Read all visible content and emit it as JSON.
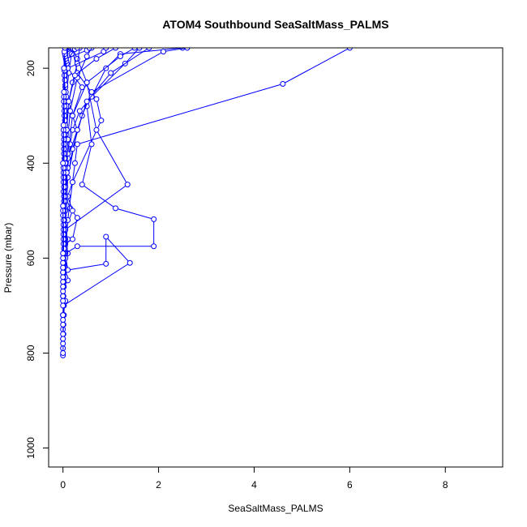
{
  "chart_data": {
    "type": "line",
    "title": "ATOM4 Southbound SeaSaltMass_PALMS",
    "xlabel": "SeaSaltMass_PALMS",
    "ylabel": "Pressure (mbar)",
    "xlim": [
      -0.3,
      9.2
    ],
    "ylim": [
      1040,
      157
    ],
    "y_reversed": true,
    "x_ticks": [
      0,
      2,
      4,
      6,
      8
    ],
    "y_ticks": [
      200,
      400,
      600,
      800,
      1000
    ],
    "grid": false,
    "legend": "none",
    "series_color": "#0000ff",
    "marker": "open-circle",
    "series": [
      {
        "values": [
          [
            0,
            805
          ],
          [
            0,
            790
          ],
          [
            0,
            770
          ],
          [
            0.01,
            740
          ],
          [
            0,
            720
          ],
          [
            0.02,
            700
          ],
          [
            0,
            680
          ],
          [
            0.01,
            650
          ],
          [
            0,
            630
          ],
          [
            0.02,
            600
          ],
          [
            0.05,
            570
          ],
          [
            0.2,
            560
          ],
          [
            0.3,
            515
          ],
          [
            0.15,
            495
          ],
          [
            0.05,
            470
          ],
          [
            0.1,
            430
          ],
          [
            0.3,
            330
          ],
          [
            0.2,
            300
          ],
          [
            0.4,
            240
          ],
          [
            0.1,
            200
          ],
          [
            0.1,
            160
          ]
        ]
      },
      {
        "values": [
          [
            0,
            800
          ],
          [
            0.01,
            760
          ],
          [
            0,
            720
          ],
          [
            0.05,
            690
          ],
          [
            0.02,
            660
          ],
          [
            0.1,
            647
          ],
          [
            0.05,
            620
          ],
          [
            0.1,
            590
          ],
          [
            0.05,
            540
          ],
          [
            0.2,
            500
          ],
          [
            0.1,
            470
          ],
          [
            0.2,
            440
          ],
          [
            0.8,
            310
          ],
          [
            0.7,
            265
          ],
          [
            0.3,
            210
          ],
          [
            0.2,
            160
          ]
        ]
      },
      {
        "values": [
          [
            0,
            780
          ],
          [
            0,
            750
          ],
          [
            0.01,
            700
          ],
          [
            1.4,
            610
          ],
          [
            0.9,
            555
          ],
          [
            0.9,
            612
          ],
          [
            0.1,
            625
          ],
          [
            0.05,
            590
          ],
          [
            0.3,
            575
          ],
          [
            1.9,
            575
          ],
          [
            1.9,
            518
          ],
          [
            1.1,
            495
          ],
          [
            0.4,
            445
          ],
          [
            0.6,
            360
          ],
          [
            0.5,
            280
          ],
          [
            0.9,
            200
          ],
          [
            1.2,
            170
          ],
          [
            2.5,
            157
          ]
        ]
      },
      {
        "values": [
          [
            0,
            770
          ],
          [
            0.02,
            720
          ],
          [
            0.05,
            640
          ],
          [
            0.1,
            560
          ],
          [
            0.05,
            540
          ],
          [
            1.35,
            445
          ],
          [
            0.7,
            330
          ],
          [
            0.5,
            230
          ],
          [
            0.3,
            180
          ],
          [
            0.2,
            157
          ]
        ]
      },
      {
        "values": [
          [
            0,
            760
          ],
          [
            0.01,
            700
          ],
          [
            0.05,
            600
          ],
          [
            0.1,
            520
          ],
          [
            0.2,
            440
          ],
          [
            0.25,
            400
          ],
          [
            0.3,
            360
          ],
          [
            4.6,
            233
          ],
          [
            6.0,
            157
          ]
        ]
      },
      {
        "values": [
          [
            0,
            740
          ],
          [
            0.01,
            680
          ],
          [
            0.05,
            560
          ],
          [
            0.1,
            430
          ],
          [
            0.2,
            370
          ],
          [
            0.4,
            300
          ],
          [
            0.6,
            250
          ],
          [
            2.1,
            165
          ],
          [
            2.6,
            157
          ]
        ]
      },
      {
        "values": [
          [
            0,
            730
          ],
          [
            0.02,
            650
          ],
          [
            0.03,
            560
          ],
          [
            0.05,
            480
          ],
          [
            0.1,
            410
          ],
          [
            0.15,
            360
          ],
          [
            0.2,
            330
          ],
          [
            0.35,
            290
          ],
          [
            0.6,
            260
          ],
          [
            1.3,
            190
          ],
          [
            1.6,
            157
          ]
        ]
      },
      {
        "values": [
          [
            0,
            720
          ],
          [
            0.01,
            640
          ],
          [
            0.02,
            560
          ],
          [
            0.05,
            470
          ],
          [
            0.1,
            390
          ],
          [
            0.3,
            330
          ],
          [
            0.5,
            270
          ],
          [
            1.0,
            210
          ],
          [
            1.8,
            157
          ]
        ]
      },
      {
        "values": [
          [
            0,
            700
          ],
          [
            0.01,
            600
          ],
          [
            0.03,
            520
          ],
          [
            0.05,
            450
          ],
          [
            0.1,
            380
          ],
          [
            0.2,
            300
          ],
          [
            0.5,
            230
          ],
          [
            1.2,
            175
          ],
          [
            1.5,
            157
          ]
        ]
      },
      {
        "values": [
          [
            0,
            690
          ],
          [
            0.02,
            580
          ],
          [
            0.05,
            500
          ],
          [
            0.08,
            420
          ],
          [
            0.1,
            350
          ],
          [
            0.15,
            290
          ],
          [
            0.3,
            220
          ],
          [
            0.5,
            175
          ],
          [
            0.6,
            157
          ]
        ]
      },
      {
        "values": [
          [
            0,
            680
          ],
          [
            0.01,
            590
          ],
          [
            0.02,
            500
          ],
          [
            0.04,
            410
          ],
          [
            0.06,
            340
          ],
          [
            0.1,
            280
          ],
          [
            0.2,
            230
          ],
          [
            0.3,
            190
          ],
          [
            0.35,
            157
          ]
        ]
      },
      {
        "values": [
          [
            0,
            670
          ],
          [
            0.01,
            570
          ],
          [
            0.02,
            480
          ],
          [
            0.05,
            400
          ],
          [
            0.08,
            330
          ],
          [
            0.12,
            270
          ],
          [
            0.25,
            215
          ],
          [
            0.7,
            180
          ],
          [
            1.1,
            157
          ]
        ]
      },
      {
        "values": [
          [
            0,
            660
          ],
          [
            0.01,
            560
          ],
          [
            0.02,
            470
          ],
          [
            0.03,
            390
          ],
          [
            0.05,
            320
          ],
          [
            0.07,
            260
          ],
          [
            0.12,
            210
          ],
          [
            0.18,
            170
          ],
          [
            0.2,
            157
          ]
        ]
      },
      {
        "values": [
          [
            0,
            650
          ],
          [
            0.01,
            550
          ],
          [
            0.01,
            460
          ],
          [
            0.02,
            380
          ],
          [
            0.04,
            310
          ],
          [
            0.06,
            250
          ],
          [
            0.1,
            200
          ],
          [
            0.85,
            165
          ],
          [
            0.9,
            157
          ]
        ]
      },
      {
        "values": [
          [
            0,
            640
          ],
          [
            0.01,
            540
          ],
          [
            0.02,
            450
          ],
          [
            0.02,
            370
          ],
          [
            0.03,
            300
          ],
          [
            0.05,
            240
          ],
          [
            0.08,
            190
          ],
          [
            0.1,
            157
          ]
        ]
      },
      {
        "values": [
          [
            0,
            630
          ],
          [
            0.01,
            530
          ],
          [
            0.01,
            440
          ],
          [
            0.02,
            360
          ],
          [
            0.03,
            290
          ],
          [
            0.05,
            235
          ],
          [
            0.07,
            185
          ],
          [
            0.25,
            160
          ],
          [
            0.3,
            157
          ]
        ]
      },
      {
        "values": [
          [
            0,
            620
          ],
          [
            0.01,
            520
          ],
          [
            0.01,
            430
          ],
          [
            0.02,
            350
          ],
          [
            0.03,
            280
          ],
          [
            0.04,
            225
          ],
          [
            0.06,
            180
          ],
          [
            0.5,
            162
          ],
          [
            0.55,
            157
          ]
        ]
      },
      {
        "values": [
          [
            0,
            610
          ],
          [
            0,
            510
          ],
          [
            0.01,
            420
          ],
          [
            0.02,
            340
          ],
          [
            0.02,
            270
          ],
          [
            0.03,
            215
          ],
          [
            0.05,
            175
          ],
          [
            0.07,
            157
          ]
        ]
      },
      {
        "values": [
          [
            0,
            600
          ],
          [
            0,
            500
          ],
          [
            0.01,
            410
          ],
          [
            0.01,
            330
          ],
          [
            0.02,
            260
          ],
          [
            0.03,
            205
          ],
          [
            0.04,
            170
          ],
          [
            0.05,
            157
          ]
        ]
      },
      {
        "values": [
          [
            0,
            590
          ],
          [
            0,
            490
          ],
          [
            0,
            400
          ],
          [
            0.01,
            320
          ],
          [
            0.02,
            250
          ],
          [
            0.02,
            200
          ],
          [
            0.03,
            165
          ],
          [
            0.04,
            157
          ]
        ]
      }
    ]
  }
}
